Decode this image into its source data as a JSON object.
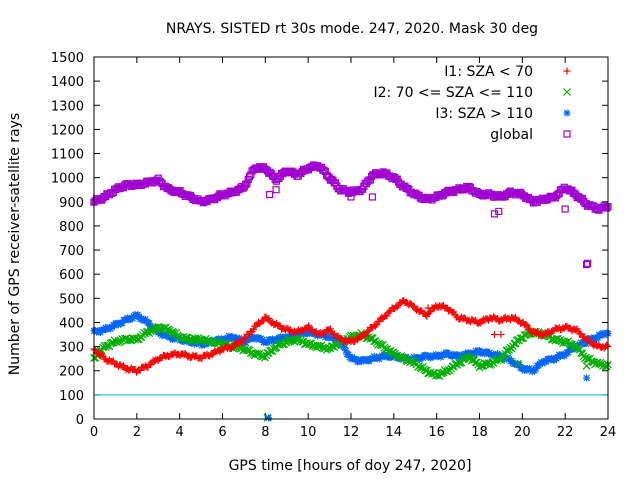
{
  "chart_data": {
    "type": "scatter",
    "title": "NRAYS. SISTED rt 30s mode. 247, 2020. Mask 30 deg",
    "xlabel": "GPS time [hours of doy 247, 2020]",
    "ylabel": "Number of GPS receiver-satellite rays",
    "xlim": [
      0,
      24
    ],
    "ylim": [
      0,
      1500
    ],
    "xticks": [
      0,
      2,
      4,
      6,
      8,
      10,
      12,
      14,
      16,
      18,
      20,
      22,
      24
    ],
    "yticks": [
      0,
      100,
      200,
      300,
      400,
      500,
      600,
      700,
      800,
      900,
      1000,
      1100,
      1200,
      1300,
      1400,
      1500
    ],
    "reference_line": {
      "y": 100,
      "color": "#00c8c8"
    },
    "legend_position": "top-right",
    "series": [
      {
        "name": "I1: SZA < 70",
        "marker": "+",
        "color": "#ff0000",
        "x": [
          0,
          0.5,
          1,
          1.5,
          2,
          2.5,
          3,
          3.5,
          4,
          4.5,
          5,
          5.5,
          6,
          6.5,
          7,
          7.5,
          8,
          8.5,
          9,
          9.5,
          10,
          10.5,
          11,
          11.5,
          12,
          12.5,
          13,
          13.5,
          14,
          14.5,
          15,
          15.5,
          16,
          16.5,
          17,
          17.5,
          18,
          18.5,
          19,
          19.5,
          20,
          20.5,
          21,
          21.5,
          22,
          22.5,
          23,
          23.5,
          24
        ],
        "y": [
          290,
          250,
          230,
          210,
          200,
          220,
          250,
          265,
          270,
          260,
          255,
          270,
          290,
          300,
          330,
          380,
          420,
          390,
          370,
          360,
          380,
          350,
          370,
          330,
          320,
          340,
          380,
          420,
          460,
          490,
          460,
          430,
          470,
          460,
          420,
          410,
          400,
          420,
          410,
          420,
          400,
          360,
          350,
          370,
          380,
          370,
          330,
          300,
          300
        ]
      },
      {
        "name": "I2: 70 <= SZA <= 110",
        "marker": "x",
        "color": "#00b000",
        "x": [
          0,
          0.5,
          1,
          1.5,
          2,
          2.5,
          3,
          3.5,
          4,
          4.5,
          5,
          5.5,
          6,
          6.5,
          7,
          7.5,
          8,
          8.5,
          9,
          9.5,
          10,
          10.5,
          11,
          11.5,
          12,
          12.5,
          13,
          13.5,
          14,
          14.5,
          15,
          15.5,
          16,
          16.5,
          17,
          17.5,
          18,
          18.5,
          19,
          19.5,
          20,
          20.5,
          21,
          21.5,
          22,
          22.5,
          23,
          23.5,
          24
        ],
        "y": [
          250,
          300,
          320,
          330,
          330,
          360,
          380,
          370,
          340,
          330,
          330,
          320,
          310,
          300,
          290,
          270,
          260,
          300,
          320,
          330,
          310,
          300,
          290,
          320,
          340,
          350,
          330,
          300,
          270,
          250,
          230,
          200,
          180,
          200,
          230,
          260,
          220,
          230,
          250,
          300,
          340,
          360,
          350,
          330,
          320,
          300,
          250,
          230,
          220
        ]
      },
      {
        "name": "I3: SZA > 110",
        "marker": "*",
        "color": "#0066ff",
        "x": [
          0,
          0.5,
          1,
          1.5,
          2,
          2.5,
          3,
          3.5,
          4,
          4.5,
          5,
          5.5,
          6,
          6.5,
          7,
          7.5,
          8,
          8.5,
          9,
          9.5,
          10,
          10.5,
          11,
          11.5,
          12,
          12.5,
          13,
          13.5,
          14,
          14.5,
          15,
          15.5,
          16,
          16.5,
          17,
          17.5,
          18,
          18.5,
          19,
          19.5,
          20,
          20.5,
          21,
          21.5,
          22,
          22.5,
          23,
          23.5,
          24
        ],
        "y": [
          360,
          370,
          390,
          410,
          430,
          400,
          360,
          340,
          330,
          320,
          310,
          320,
          330,
          340,
          320,
          340,
          320,
          330,
          340,
          350,
          360,
          350,
          340,
          320,
          250,
          240,
          250,
          260,
          260,
          250,
          250,
          260,
          260,
          270,
          260,
          270,
          280,
          270,
          260,
          240,
          210,
          200,
          240,
          250,
          270,
          300,
          320,
          340,
          360
        ]
      },
      {
        "name": "global",
        "marker": "square",
        "color": "#a000d0",
        "x": [
          0,
          0.5,
          1,
          1.5,
          2,
          2.5,
          3,
          3.5,
          4,
          4.5,
          5,
          5.5,
          6,
          6.5,
          7,
          7.5,
          8,
          8.5,
          9,
          9.5,
          10,
          10.5,
          11,
          11.5,
          12,
          12.5,
          13,
          13.5,
          14,
          14.5,
          15,
          15.5,
          16,
          16.5,
          17,
          17.5,
          18,
          18.5,
          19,
          19.5,
          20,
          20.5,
          21,
          21.5,
          22,
          22.5,
          23,
          23.5,
          24
        ],
        "y": [
          900,
          920,
          950,
          970,
          970,
          980,
          990,
          950,
          940,
          920,
          900,
          910,
          930,
          940,
          960,
          1040,
          1040,
          990,
          1030,
          1010,
          1040,
          1050,
          1000,
          950,
          940,
          950,
          1010,
          1020,
          1000,
          960,
          930,
          910,
          920,
          940,
          950,
          960,
          930,
          930,
          920,
          940,
          930,
          900,
          910,
          920,
          960,
          930,
          890,
          870,
          880
        ]
      }
    ],
    "outliers": [
      {
        "series": "global",
        "x": [
          8.2,
          8.5,
          12,
          13,
          18.7,
          18.9,
          22,
          23,
          23.05
        ],
        "y": [
          930,
          950,
          920,
          920,
          850,
          860,
          870,
          640,
          645
        ]
      },
      {
        "series": "I2: 70 <= SZA <= 110",
        "x": [
          8.1,
          19.8,
          23
        ],
        "y": [
          5,
          230,
          220
        ]
      },
      {
        "series": "I3: SZA > 110",
        "x": [
          8.15,
          23
        ],
        "y": [
          5,
          170
        ]
      },
      {
        "series": "I1: SZA < 70",
        "x": [
          15.6,
          18.7,
          19
        ],
        "y": [
          460,
          350,
          350
        ]
      }
    ]
  }
}
